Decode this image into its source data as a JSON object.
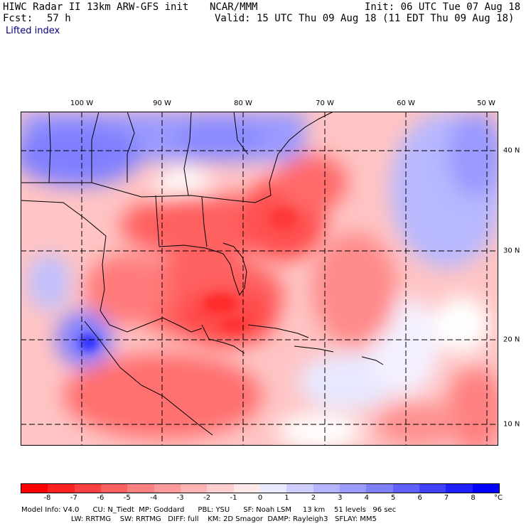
{
  "header": {
    "title_left": "HIWC Radar II 13km ARW-GFS init",
    "org": "NCAR/MMM",
    "init": "Init: 06 UTC Tue 07 Aug 18",
    "fcst_label": "Fcst:",
    "fcst_value": "57 h",
    "valid": "Valid: 15 UTC Thu 09 Aug 18 (11 EDT Thu 09 Aug 18)",
    "field": "Lifted index"
  },
  "map": {
    "longitude_labels": [
      "100 W",
      "90 W",
      "80 W",
      "70 W",
      "60 W",
      "50 W"
    ],
    "latitude_labels": [
      "40 N",
      "30 N",
      "20 N",
      "10 N"
    ]
  },
  "colorbar": {
    "labels": [
      "-8",
      "-7",
      "-6",
      "-5",
      "-4",
      "-3",
      "-2",
      "-1",
      "0",
      "1",
      "2",
      "3",
      "4",
      "5",
      "6",
      "7",
      "8"
    ],
    "unit": "°C",
    "colors": [
      "#ff0000",
      "#ff2020",
      "#ff4040",
      "#ff6060",
      "#ff8080",
      "#ff9a9a",
      "#ffb4b4",
      "#ffcece",
      "#ffe8e8",
      "#e8e8ff",
      "#ceceff",
      "#b4b4ff",
      "#9a9aff",
      "#8080ff",
      "#6060ff",
      "#4040ff",
      "#2020ff",
      "#0000ff"
    ]
  },
  "footer": {
    "line1": "Model Info: V4.0      CU: N_Tiedt  MP: Goddard      PBL: YSU      SF: Noah LSM     13 km    51 levels   96 sec",
    "line2": "                      LW: RRTMG    SW: RRTMG   DIFF: full    KM: 2D Smagor  DAMP: Rayleigh3   SFLAY: MM5"
  }
}
